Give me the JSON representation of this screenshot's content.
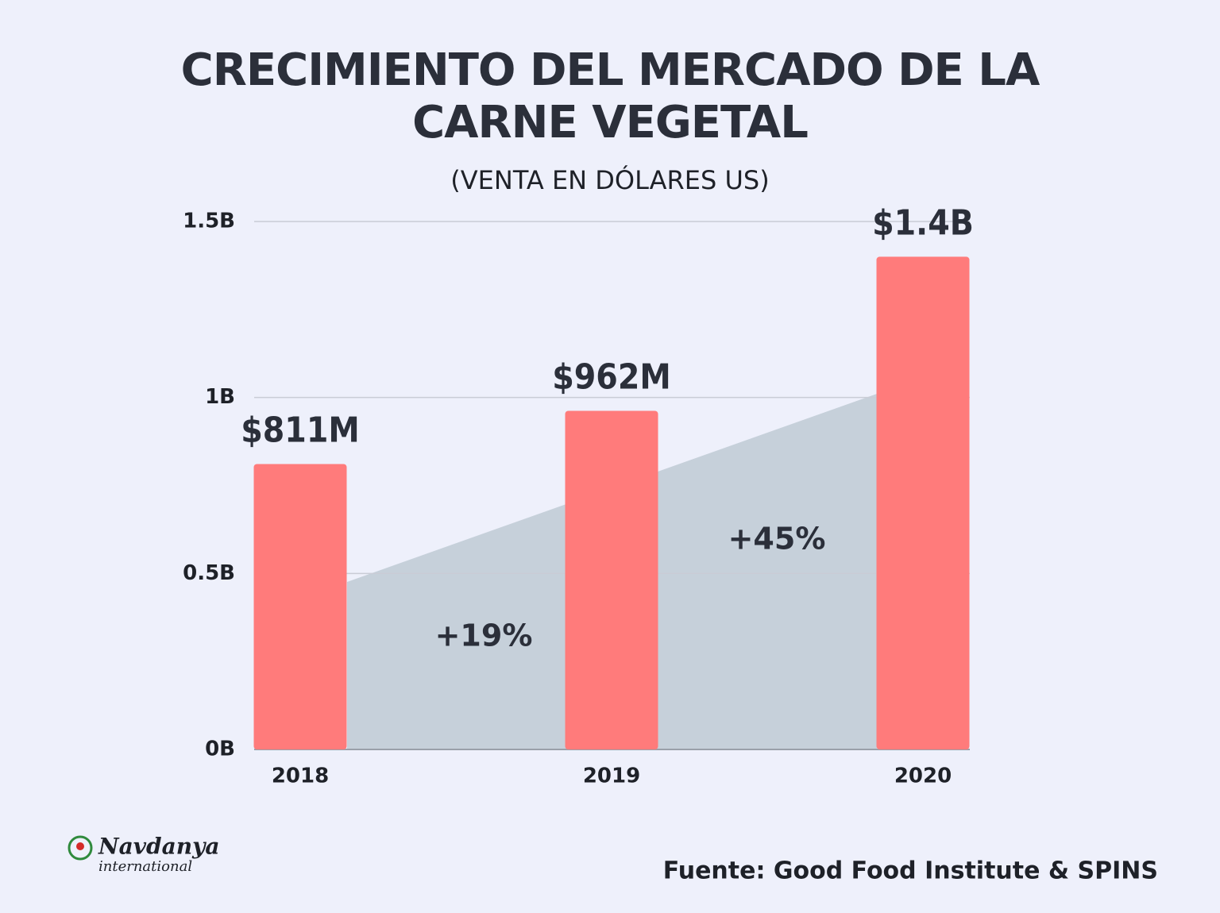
{
  "chart_data": {
    "type": "bar",
    "title": "CRECIMIENTO DEL MERCADO DE LA CARNE VEGETAL",
    "subtitle": "(VENTA EN DÓLARES US)",
    "categories": [
      "2018",
      "2019",
      "2020"
    ],
    "values": [
      0.811,
      0.962,
      1.4
    ],
    "value_labels": [
      "$811M",
      "$962M",
      "$1.4B"
    ],
    "color": "#ff7b7b",
    "ylim": [
      0,
      1.5
    ],
    "yticks": [
      {
        "value": 0,
        "label": "0B"
      },
      {
        "value": 0.5,
        "label": "0.5B"
      },
      {
        "value": 1,
        "label": "1B"
      },
      {
        "value": 1.5,
        "label": "1.5B"
      }
    ],
    "grid": true,
    "annotations": [
      "+19%",
      "+45%"
    ],
    "source": "Fuente: Good Food Institute & SPINS"
  },
  "logo": {
    "name": "Navdanya",
    "tagline": "international"
  }
}
